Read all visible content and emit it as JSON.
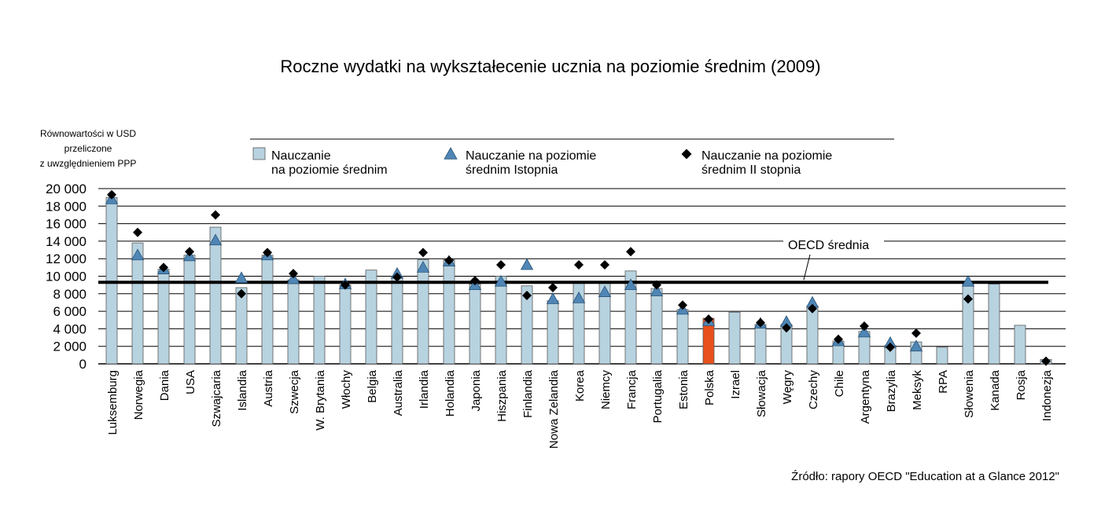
{
  "chart_data": {
    "type": "bar",
    "title": "Roczne wydatki na wykształecenie ucznia na poziomie średnim (2009)",
    "ylabel_lines": [
      "Równowartości w USD",
      "przeliczone",
      "z uwzględnieniem PPP"
    ],
    "ylim": [
      0,
      20000
    ],
    "yticks": [
      0,
      2000,
      4000,
      6000,
      8000,
      10000,
      12000,
      14000,
      16000,
      18000,
      20000
    ],
    "ytick_labels": [
      "0",
      "2 000",
      "4 000",
      "6 000",
      "8 000",
      "10 000",
      "12 000",
      "14 000",
      "16 000",
      "18 000",
      "20 000"
    ],
    "grid": true,
    "legend_position": "top",
    "categories": [
      "Luksemburg",
      "Norwegia",
      "Dania",
      "USA",
      "Szwajcaria",
      "Islandia",
      "Austria",
      "Szwecja",
      "W. Brytania",
      "Włochy",
      "Belgia",
      "Australia",
      "Irlandia",
      "Holandia",
      "Japonia",
      "Hiszpania",
      "Finlandia",
      "Nowa Zelandia",
      "Korea",
      "Niemcy",
      "Francja",
      "Portugalia",
      "Estonia",
      "Polska",
      "Izrael",
      "Słowacja",
      "Węgry",
      "Czechy",
      "Chile",
      "Argentyna",
      "Brazylia",
      "Meksyk",
      "RPA",
      "Słowenia",
      "Kanada",
      "Rosja",
      "Indonezja"
    ],
    "highlight_category": "Polska",
    "series": [
      {
        "name": "Nauczanie\nna poziomie średnim",
        "kind": "bar",
        "color": "#b8d3e0",
        "highlight_color": "#e8501c",
        "values": [
          19000,
          13800,
          10800,
          12400,
          15600,
          8700,
          12400,
          9600,
          10000,
          9000,
          10700,
          10000,
          11900,
          11900,
          9100,
          10000,
          8900,
          7200,
          9200,
          9200,
          10600,
          8600,
          6200,
          5200,
          5900,
          4500,
          4500,
          6600,
          2600,
          3700,
          2100,
          2500,
          1900,
          9200,
          9100,
          4400,
          500
        ]
      },
      {
        "name": "Nauczanie na poziomie\nśrednim Istopnia",
        "kind": "triangle",
        "color": "#4f86b5",
        "values": [
          18800,
          12400,
          10800,
          12300,
          14100,
          9800,
          12400,
          9700,
          null,
          9100,
          null,
          10300,
          11000,
          11700,
          9000,
          9400,
          11300,
          7400,
          7500,
          8200,
          9000,
          8300,
          6200,
          4900,
          null,
          4600,
          4800,
          7000,
          2600,
          3600,
          2400,
          2000,
          null,
          9400,
          null,
          null,
          null
        ]
      },
      {
        "name": "Nauczanie na poziomie\nśrednim II stopnia",
        "kind": "diamond",
        "color": "#000000",
        "values": [
          19300,
          15000,
          11000,
          12800,
          17000,
          8000,
          12700,
          10300,
          null,
          9000,
          null,
          9900,
          12700,
          11800,
          9500,
          11300,
          7800,
          8700,
          11300,
          11300,
          12800,
          9000,
          6700,
          5100,
          null,
          4700,
          4100,
          6300,
          2800,
          4300,
          1900,
          3500,
          null,
          7400,
          null,
          null,
          300
        ]
      }
    ],
    "reference_line": {
      "label": "OECD średnia",
      "value": 9300
    }
  },
  "source": "Źródło: rapory OECD \"Education at a Glance 2012\""
}
